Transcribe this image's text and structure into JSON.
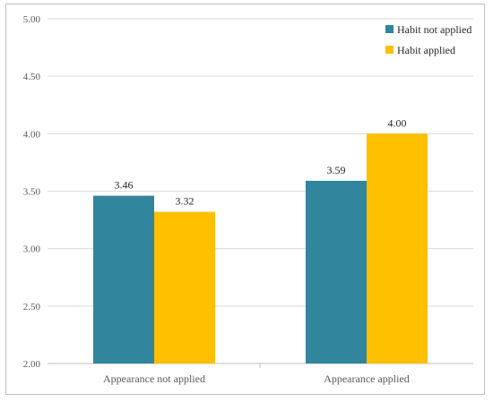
{
  "chart_data": {
    "type": "bar",
    "categories": [
      "Appearance not applied",
      "Appearance applied"
    ],
    "series": [
      {
        "name": "Habit not applied",
        "color": "#31859c",
        "values": [
          3.46,
          3.59
        ],
        "labels": [
          "3.46",
          "3.59"
        ]
      },
      {
        "name": "Habit applied",
        "color": "#ffc000",
        "values": [
          3.32,
          4.0
        ],
        "labels": [
          "3.32",
          "4.00"
        ]
      }
    ],
    "ylim": [
      2.0,
      5.0
    ],
    "yticks": [
      "2.00",
      "2.50",
      "3.00",
      "3.50",
      "4.00",
      "4.50",
      "5.00"
    ],
    "grid": true,
    "legend_position": "top-right",
    "title": "",
    "xlabel": "",
    "ylabel": ""
  }
}
